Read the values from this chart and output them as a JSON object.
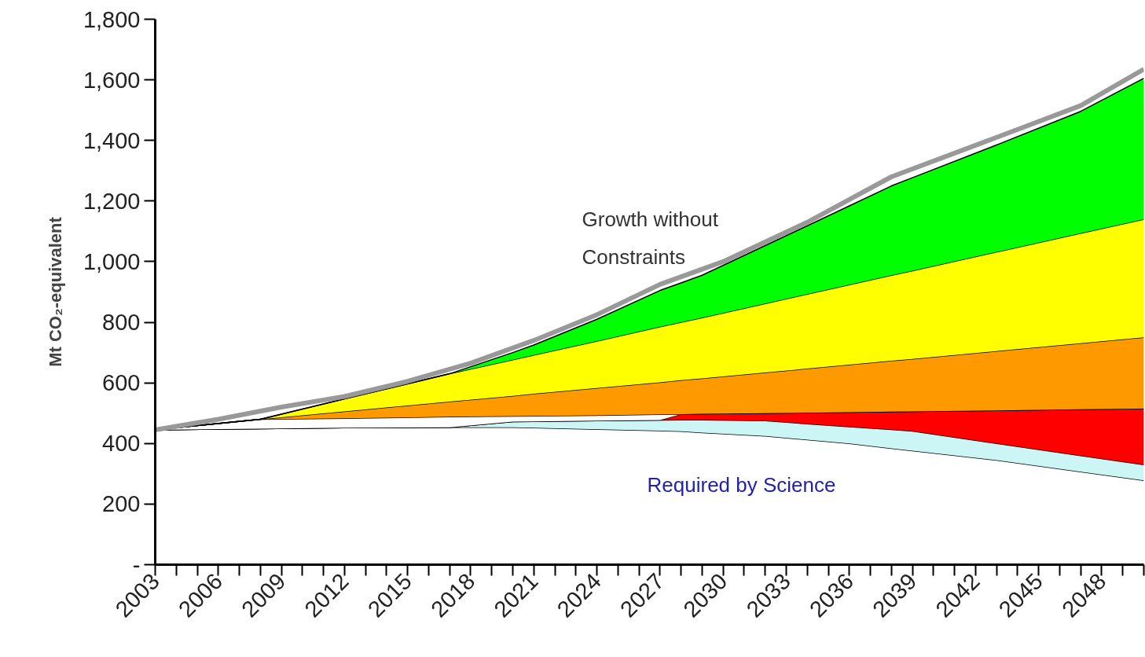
{
  "chart_data": {
    "type": "area",
    "stacked": true,
    "ylabel": "Mt CO₂-equivalent",
    "xlim": [
      2003,
      2050
    ],
    "ylim": [
      0,
      1800
    ],
    "xticks": [
      {
        "value": 2003,
        "label": "2003"
      },
      {
        "value": 2004,
        "label": null
      },
      {
        "value": 2005,
        "label": null
      },
      {
        "value": 2006,
        "label": "2006"
      },
      {
        "value": 2007,
        "label": null
      },
      {
        "value": 2008,
        "label": null
      },
      {
        "value": 2009,
        "label": "2009"
      },
      {
        "value": 2010,
        "label": null
      },
      {
        "value": 2011,
        "label": null
      },
      {
        "value": 2012,
        "label": "2012"
      },
      {
        "value": 2013,
        "label": null
      },
      {
        "value": 2014,
        "label": null
      },
      {
        "value": 2015,
        "label": "2015"
      },
      {
        "value": 2016,
        "label": null
      },
      {
        "value": 2017,
        "label": null
      },
      {
        "value": 2018,
        "label": "2018"
      },
      {
        "value": 2019,
        "label": null
      },
      {
        "value": 2020,
        "label": null
      },
      {
        "value": 2021,
        "label": "2021"
      },
      {
        "value": 2022,
        "label": null
      },
      {
        "value": 2023,
        "label": null
      },
      {
        "value": 2024,
        "label": "2024"
      },
      {
        "value": 2025,
        "label": null
      },
      {
        "value": 2026,
        "label": null
      },
      {
        "value": 2027,
        "label": "2027"
      },
      {
        "value": 2028,
        "label": null
      },
      {
        "value": 2029,
        "label": null
      },
      {
        "value": 2030,
        "label": "2030"
      },
      {
        "value": 2031,
        "label": null
      },
      {
        "value": 2032,
        "label": null
      },
      {
        "value": 2033,
        "label": "2033"
      },
      {
        "value": 2034,
        "label": null
      },
      {
        "value": 2035,
        "label": null
      },
      {
        "value": 2036,
        "label": "2036"
      },
      {
        "value": 2037,
        "label": null
      },
      {
        "value": 2038,
        "label": null
      },
      {
        "value": 2039,
        "label": "2039"
      },
      {
        "value": 2040,
        "label": null
      },
      {
        "value": 2041,
        "label": null
      },
      {
        "value": 2042,
        "label": "2042"
      },
      {
        "value": 2043,
        "label": null
      },
      {
        "value": 2044,
        "label": null
      },
      {
        "value": 2045,
        "label": "2045"
      },
      {
        "value": 2046,
        "label": null
      },
      {
        "value": 2047,
        "label": null
      },
      {
        "value": 2048,
        "label": "2048"
      },
      {
        "value": 2049,
        "label": null
      },
      {
        "value": 2050,
        "label": null
      }
    ],
    "yticks": [
      {
        "value": 0,
        "label": "-"
      },
      200,
      400,
      600,
      800,
      {
        "value": 1000,
        "label": "1,000"
      },
      {
        "value": 1200,
        "label": "1,200"
      },
      {
        "value": 1400,
        "label": "1,400"
      },
      {
        "value": 1600,
        "label": "1,600"
      },
      {
        "value": 1800,
        "label": "1,800"
      }
    ],
    "grid": false,
    "x": [
      2003,
      2008,
      2012,
      2017,
      2020,
      2021,
      2024,
      2027,
      2028,
      2029,
      2032,
      2036,
      2038,
      2039,
      2043,
      2047,
      2050
    ],
    "series": [
      {
        "color": "#ffffff",
        "values": [
          445,
          449,
          452,
          453,
          453,
          452,
          447,
          442,
          440,
          436,
          425,
          400,
          384,
          376,
          345,
          307,
          278
        ]
      },
      {
        "color": "#ccf5f5",
        "values": [
          0,
          0,
          0,
          0,
          19,
          21,
          28,
          35,
          38,
          42,
          50,
          55,
          62,
          65,
          55,
          53,
          52
        ]
      },
      {
        "color": "#ff0000",
        "values": [
          0,
          0,
          0,
          0,
          0,
          0,
          0,
          0,
          19,
          20,
          25,
          48,
          59,
          65,
          109,
          153,
          185
        ]
      },
      {
        "color": "#ffffff",
        "values": [
          0,
          31,
          31,
          35,
          18,
          18,
          18,
          19,
          0,
          0,
          0,
          0,
          0,
          0,
          0,
          0,
          0
        ]
      },
      {
        "color": "#ff9900",
        "values": [
          0,
          0,
          23,
          50,
          67,
          73,
          90,
          106,
          112,
          117,
          134,
          157,
          168,
          173,
          196,
          218,
          235
        ]
      },
      {
        "color": "#ffff00",
        "values": [
          0,
          0,
          41,
          92,
          119,
          128,
          155,
          183,
          191,
          200,
          228,
          264,
          282,
          291,
          327,
          363,
          390
        ]
      },
      {
        "color": "#00ff00",
        "values": [
          0,
          0,
          0,
          0,
          24,
          33,
          72,
          120,
          130,
          140,
          191,
          260,
          295,
          307,
          353,
          402,
          465
        ]
      },
      {
        "type": "line",
        "color": "#999999",
        "x": [
          2003,
          2006,
          2009,
          2012,
          2015,
          2018,
          2021,
          2024,
          2027,
          2030,
          2034,
          2038,
          2042,
          2047,
          2050
        ],
        "values": [
          445,
          480,
          520,
          555,
          605,
          665,
          740,
          825,
          925,
          1000,
          1130,
          1280,
          1384,
          1515,
          1635
        ]
      }
    ],
    "annotations": [
      "Growth without\nConstraints",
      "Required by Science"
    ]
  }
}
